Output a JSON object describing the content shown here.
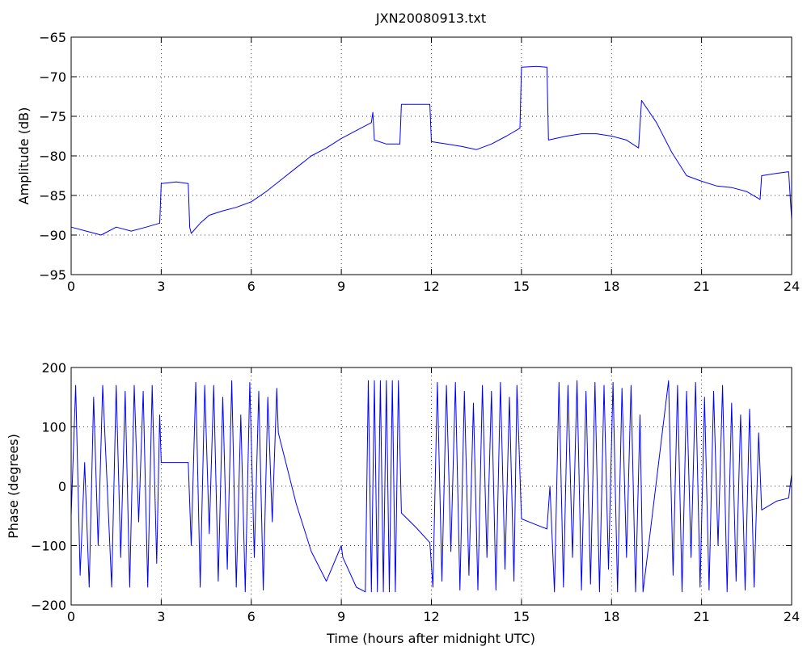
{
  "chart_data": [
    {
      "type": "line",
      "title": "JXN20080913.txt",
      "xlabel": "",
      "ylabel": "Amplitude (dB)",
      "xlim": [
        0,
        24
      ],
      "ylim": [
        -95,
        -65
      ],
      "x_ticks": [
        "0",
        "3",
        "6",
        "9",
        "12",
        "15",
        "18",
        "21",
        "24"
      ],
      "y_ticks": [
        "-95",
        "-90",
        "-85",
        "-80",
        "-75",
        "-70",
        "-65"
      ],
      "grid": true,
      "color": "#0000ff",
      "series": [
        {
          "x": [
            0,
            0.5,
            1.0,
            1.5,
            2.0,
            2.5,
            2.95,
            3.0,
            3.5,
            3.9,
            3.95,
            4.0,
            4.3,
            4.6,
            5.0,
            5.5,
            6.0,
            6.5,
            7.0,
            7.5,
            8.0,
            8.5,
            9.0,
            9.5,
            10.0,
            10.05,
            10.1,
            10.5,
            10.95,
            11.0,
            11.5,
            11.95,
            12.0,
            12.5,
            13.0,
            13.5,
            14.0,
            14.5,
            14.95,
            15.0,
            15.5,
            15.85,
            15.9,
            16.5,
            17.0,
            17.5,
            18.0,
            18.5,
            18.9,
            19.0,
            19.5,
            20.0,
            20.5,
            21.0,
            21.5,
            22.0,
            22.5,
            22.95,
            23.0,
            23.5,
            23.9,
            24.0
          ],
          "y": [
            -89,
            -89.5,
            -90,
            -89,
            -89.5,
            -89,
            -88.5,
            -83.5,
            -83.3,
            -83.5,
            -89,
            -89.8,
            -88.5,
            -87.5,
            -87,
            -86.5,
            -85.8,
            -84.5,
            -83,
            -81.5,
            -80,
            -79,
            -77.8,
            -76.8,
            -75.8,
            -74.5,
            -78,
            -78.5,
            -78.5,
            -73.5,
            -73.5,
            -73.5,
            -78.2,
            -78.5,
            -78.8,
            -79.2,
            -78.5,
            -77.5,
            -76.5,
            -68.8,
            -68.7,
            -68.8,
            -78,
            -77.5,
            -77.2,
            -77.2,
            -77.5,
            -78,
            -79,
            -73,
            -75.8,
            -79.5,
            -82.5,
            -83.2,
            -83.8,
            -84,
            -84.5,
            -85.5,
            -82.5,
            -82.2,
            -82,
            -88
          ]
        }
      ]
    },
    {
      "type": "line",
      "title": "",
      "xlabel": "Time (hours after midnight UTC)",
      "ylabel": "Phase (degrees)",
      "xlim": [
        0,
        24
      ],
      "ylim": [
        -200,
        200
      ],
      "x_ticks": [
        "0",
        "3",
        "6",
        "9",
        "12",
        "15",
        "18",
        "21",
        "24"
      ],
      "y_ticks": [
        "-200",
        "-100",
        "0",
        "100",
        "200"
      ],
      "grid": true,
      "color": "#0000ff",
      "series": [
        {
          "x": [
            0,
            0.15,
            0.3,
            0.45,
            0.6,
            0.75,
            0.9,
            1.05,
            1.2,
            1.35,
            1.5,
            1.65,
            1.8,
            1.95,
            2.1,
            2.25,
            2.4,
            2.55,
            2.7,
            2.85,
            2.95,
            3.0,
            3.5,
            3.9,
            4.0,
            4.15,
            4.3,
            4.45,
            4.6,
            4.75,
            4.9,
            5.05,
            5.2,
            5.35,
            5.5,
            5.65,
            5.8,
            5.95,
            6.1,
            6.25,
            6.4,
            6.55,
            6.7,
            6.85,
            6.9,
            7.5,
            8.0,
            8.5,
            9.0,
            9.05,
            9.5,
            9.8,
            9.9,
            10.0,
            10.1,
            10.2,
            10.3,
            10.4,
            10.5,
            10.6,
            10.7,
            10.8,
            10.9,
            11.0,
            11.5,
            11.95,
            12.05,
            12.2,
            12.35,
            12.5,
            12.65,
            12.8,
            12.95,
            13.1,
            13.25,
            13.4,
            13.55,
            13.7,
            13.85,
            14.0,
            14.15,
            14.3,
            14.45,
            14.6,
            14.75,
            14.85,
            15.0,
            15.5,
            15.85,
            15.95,
            16.1,
            16.25,
            16.4,
            16.55,
            16.7,
            16.85,
            17.0,
            17.15,
            17.3,
            17.45,
            17.6,
            17.75,
            17.9,
            18.05,
            18.2,
            18.35,
            18.5,
            18.65,
            18.8,
            18.95,
            19.05,
            19.9,
            20.05,
            20.2,
            20.35,
            20.5,
            20.65,
            20.8,
            20.95,
            21.1,
            21.25,
            21.4,
            21.55,
            21.7,
            21.85,
            22.0,
            22.15,
            22.3,
            22.45,
            22.6,
            22.75,
            22.9,
            23.0,
            23.5,
            23.9,
            24.0
          ],
          "y": [
            -50,
            170,
            -150,
            40,
            -170,
            150,
            -100,
            170,
            0,
            -170,
            170,
            -120,
            160,
            -170,
            170,
            -60,
            160,
            -170,
            170,
            -130,
            120,
            40,
            40,
            40,
            -100,
            175,
            -170,
            170,
            -80,
            170,
            -160,
            150,
            -140,
            178,
            -170,
            120,
            -178,
            175,
            -120,
            160,
            -175,
            150,
            -60,
            165,
            90,
            -30,
            -110,
            -160,
            -100,
            -120,
            -170,
            -178,
            178,
            -178,
            178,
            -178,
            178,
            -178,
            178,
            -178,
            178,
            -178,
            178,
            -45,
            -70,
            -95,
            -170,
            175,
            -160,
            170,
            -110,
            175,
            -175,
            160,
            -150,
            140,
            -175,
            170,
            -120,
            160,
            -175,
            175,
            -140,
            150,
            -160,
            170,
            -55,
            -65,
            -72,
            0,
            -178,
            175,
            -170,
            170,
            -120,
            178,
            -175,
            160,
            -165,
            175,
            -178,
            170,
            -140,
            175,
            -178,
            165,
            -120,
            170,
            -178,
            120,
            -178,
            178,
            -150,
            170,
            -178,
            160,
            -120,
            175,
            -170,
            150,
            -175,
            160,
            -100,
            170,
            -178,
            140,
            -160,
            120,
            -175,
            130,
            -170,
            90,
            -40,
            -25,
            -20,
            20
          ]
        }
      ]
    }
  ]
}
